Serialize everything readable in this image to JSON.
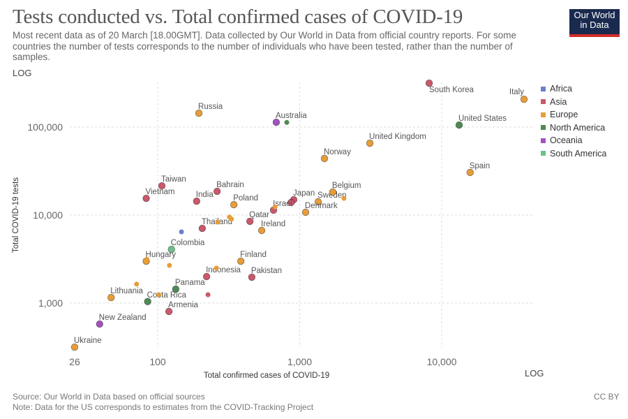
{
  "header": {
    "title": "Tests conducted vs. Total confirmed cases of COVID-19",
    "subtitle": "Most recent data as of 20 March [18.00GMT]. Data collected by Our World in Data from official country reports. For some countries the number of tests corresponds to the number of individuals who have been tested, rather than the number of samples.",
    "logo": "Our World in Data"
  },
  "footer": {
    "source": "Source: Our World in Data based on official sources",
    "note": "Note: Data for the US corresponds to estimates from the COVID-Tracking Project",
    "license": "CC BY"
  },
  "chart_data": {
    "type": "scatter",
    "title": "Tests conducted vs. Total confirmed cases of COVID-19",
    "xlabel": "Total confirmed cases of COVID-19",
    "ylabel": "Total COVID-19 tests",
    "xscale": "log",
    "yscale": "log",
    "xscale_label": "LOG",
    "yscale_label": "LOG",
    "xlim": [
      26,
      45000
    ],
    "ylim": [
      316,
      320000
    ],
    "xticks": [
      {
        "v": 26,
        "label": "26"
      },
      {
        "v": 100,
        "label": "100"
      },
      {
        "v": 1000,
        "label": "1,000"
      },
      {
        "v": 10000,
        "label": "10,000"
      }
    ],
    "yticks": [
      {
        "v": 1000,
        "label": "1,000"
      },
      {
        "v": 10000,
        "label": "10,000"
      },
      {
        "v": 100000,
        "label": "100,000"
      }
    ],
    "grid": true,
    "legend_position": "right",
    "continents": [
      {
        "name": "Africa",
        "color": "#6b7fcc"
      },
      {
        "name": "Asia",
        "color": "#c9596b"
      },
      {
        "name": "Europe",
        "color": "#e69d3a"
      },
      {
        "name": "North America",
        "color": "#4f8a55"
      },
      {
        "name": "Oceania",
        "color": "#a352c0"
      },
      {
        "name": "South America",
        "color": "#6cc08c"
      }
    ],
    "points": [
      {
        "label": "South Korea",
        "continent": "Asia",
        "x": 8160,
        "y": 316000
      },
      {
        "label": "Italy",
        "continent": "Europe",
        "x": 38000,
        "y": 207000
      },
      {
        "label": "United States",
        "continent": "North America",
        "x": 13270,
        "y": 105600
      },
      {
        "label": "Russia",
        "continent": "Europe",
        "x": 195,
        "y": 144000
      },
      {
        "label": "Australia",
        "continent": "Oceania",
        "x": 684,
        "y": 113600
      },
      {
        "label": "",
        "continent": "North America",
        "x": 811,
        "y": 113000,
        "small": true
      },
      {
        "label": "United Kingdom",
        "continent": "Europe",
        "x": 3119,
        "y": 65600
      },
      {
        "label": "Norway",
        "continent": "Europe",
        "x": 1494,
        "y": 44000
      },
      {
        "label": "Spain",
        "continent": "Europe",
        "x": 15850,
        "y": 30500
      },
      {
        "label": "Taiwan",
        "continent": "Asia",
        "x": 107,
        "y": 21500
      },
      {
        "label": "Vietnam",
        "continent": "Asia",
        "x": 83,
        "y": 15500
      },
      {
        "label": "India",
        "continent": "Asia",
        "x": 188,
        "y": 14400
      },
      {
        "label": "Bahrain",
        "continent": "Asia",
        "x": 262,
        "y": 18600
      },
      {
        "label": "Poland",
        "continent": "Europe",
        "x": 344,
        "y": 13150
      },
      {
        "label": "Japan",
        "continent": "Asia",
        "x": 908,
        "y": 14950
      },
      {
        "label": "",
        "continent": "Asia",
        "x": 870,
        "y": 13900
      },
      {
        "label": "Israel",
        "continent": "Asia",
        "x": 654,
        "y": 11370
      },
      {
        "label": "",
        "continent": "Europe",
        "x": 670,
        "y": 12400,
        "small": true
      },
      {
        "label": "Sweden",
        "continent": "Europe",
        "x": 1350,
        "y": 14150
      },
      {
        "label": "Belgium",
        "continent": "Europe",
        "x": 1710,
        "y": 18300
      },
      {
        "label": "",
        "continent": "Europe",
        "x": 2050,
        "y": 15500,
        "small": true
      },
      {
        "label": "Denmark",
        "continent": "Europe",
        "x": 1100,
        "y": 10760
      },
      {
        "label": "Qatar",
        "continent": "Asia",
        "x": 446,
        "y": 8490
      },
      {
        "label": "Ireland",
        "continent": "Europe",
        "x": 540,
        "y": 6690
      },
      {
        "label": "Thailand",
        "continent": "Asia",
        "x": 206,
        "y": 7060
      },
      {
        "label": "",
        "continent": "Europe",
        "x": 320,
        "y": 9500,
        "small": true
      },
      {
        "label": "",
        "continent": "Europe",
        "x": 331,
        "y": 9000,
        "small": true
      },
      {
        "label": "",
        "continent": "Europe",
        "x": 265,
        "y": 8300,
        "small": true
      },
      {
        "label": "",
        "continent": "Africa",
        "x": 147,
        "y": 6450,
        "small": true
      },
      {
        "label": "Colombia",
        "continent": "South America",
        "x": 125,
        "y": 4080
      },
      {
        "label": "Hungary",
        "continent": "Europe",
        "x": 83,
        "y": 2990
      },
      {
        "label": "",
        "continent": "Europe",
        "x": 84,
        "y": 3150,
        "small": true
      },
      {
        "label": "",
        "continent": "Europe",
        "x": 121,
        "y": 2680,
        "small": true
      },
      {
        "label": "Finland",
        "continent": "Europe",
        "x": 385,
        "y": 2990
      },
      {
        "label": "Indonesia",
        "continent": "Asia",
        "x": 221,
        "y": 2000
      },
      {
        "label": "",
        "continent": "Europe",
        "x": 259,
        "y": 2500,
        "small": true
      },
      {
        "label": "Pakistan",
        "continent": "Asia",
        "x": 460,
        "y": 1970
      },
      {
        "label": "Panama",
        "continent": "North America",
        "x": 134,
        "y": 1440
      },
      {
        "label": "",
        "continent": "Asia",
        "x": 226,
        "y": 1245,
        "small": true
      },
      {
        "label": "",
        "continent": "Europe",
        "x": 71,
        "y": 1640,
        "small": true
      },
      {
        "label": "Lithuania",
        "continent": "Europe",
        "x": 47,
        "y": 1156
      },
      {
        "label": "Costa Rica",
        "continent": "North America",
        "x": 85,
        "y": 1040
      },
      {
        "label": "",
        "continent": "Europe",
        "x": 102,
        "y": 1245,
        "small": true
      },
      {
        "label": "Armenia",
        "continent": "Asia",
        "x": 120,
        "y": 803
      },
      {
        "label": "New Zealand",
        "continent": "Oceania",
        "x": 39,
        "y": 578
      },
      {
        "label": "Ukraine",
        "continent": "Europe",
        "x": 26,
        "y": 316
      }
    ]
  }
}
